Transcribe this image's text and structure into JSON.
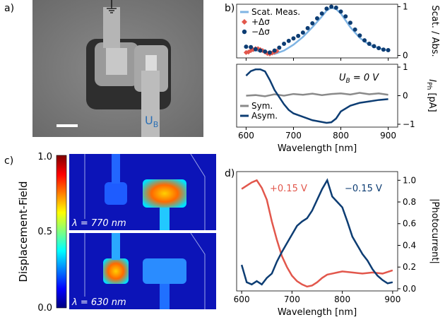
{
  "panels": {
    "a": {
      "label": "a)",
      "gate_label": "U",
      "gate_sub": "B"
    },
    "b": {
      "label": "b)"
    },
    "c": {
      "label": "c)",
      "colorbar": {
        "title": "Displacement-Field",
        "ticks": [
          "1.0",
          "0.5",
          "0.0"
        ]
      },
      "top_image_label": "λ = 770 nm",
      "bottom_image_label": "λ = 630 nm"
    },
    "d": {
      "label": "d)"
    }
  },
  "colors": {
    "meas": "#7fb4e3",
    "plus": "#e2574c",
    "minus": "#0d3d73",
    "sym": "#8a8a8a",
    "asym": "#0d3d73"
  },
  "chart_data": [
    {
      "type": "scatter",
      "panel": "b-top",
      "ylabel": "Scat. / Abs.",
      "xlim": [
        580,
        920
      ],
      "ylim": [
        -0.05,
        1.05
      ],
      "yticks": [
        "0",
        "1"
      ],
      "legend": [
        "Scat. Meas.",
        "+Δσ",
        "−Δσ"
      ],
      "series": [
        {
          "name": "Scat. Meas.",
          "x": [
            600,
            620,
            640,
            660,
            680,
            700,
            720,
            740,
            760,
            770,
            780,
            790,
            800,
            820,
            840,
            860,
            880,
            900
          ],
          "y": [
            0.08,
            0.1,
            0.08,
            0.03,
            0.1,
            0.22,
            0.38,
            0.58,
            0.8,
            0.92,
            0.98,
            0.95,
            0.86,
            0.58,
            0.36,
            0.22,
            0.15,
            0.1
          ]
        },
        {
          "name": "+Δσ",
          "x": [
            600,
            605,
            610,
            615,
            620,
            625,
            630,
            635,
            640,
            645,
            650,
            655,
            660,
            665
          ],
          "y": [
            0.06,
            0.07,
            0.1,
            0.12,
            0.14,
            0.14,
            0.12,
            0.1,
            0.07,
            0.04,
            0.03,
            0.05,
            0.07,
            0.09
          ]
        },
        {
          "name": "−Δσ",
          "x": [
            600,
            610,
            620,
            630,
            640,
            650,
            660,
            670,
            680,
            690,
            700,
            710,
            720,
            730,
            740,
            750,
            760,
            770,
            780,
            790,
            800,
            810,
            820,
            830,
            840,
            850,
            860,
            870,
            880,
            890,
            900
          ],
          "y": [
            0.18,
            0.17,
            0.13,
            0.1,
            0.08,
            0.06,
            0.1,
            0.16,
            0.24,
            0.3,
            0.35,
            0.4,
            0.47,
            0.56,
            0.66,
            0.76,
            0.86,
            0.96,
            1.0,
            0.98,
            0.9,
            0.8,
            0.67,
            0.53,
            0.41,
            0.31,
            0.24,
            0.19,
            0.15,
            0.12,
            0.11
          ]
        }
      ]
    },
    {
      "type": "line",
      "panel": "b-bottom",
      "annotation": "U_B = 0 V",
      "ylabel": "I_Ph [pA]",
      "xlabel": "Wavelength [nm]",
      "xlim": [
        580,
        920
      ],
      "ylim": [
        -1.1,
        1.1
      ],
      "xticks": [
        "600",
        "700",
        "800",
        "900"
      ],
      "yticks": [
        "−1",
        "0",
        "1"
      ],
      "legend": [
        "Sym.",
        "Asym."
      ],
      "series": [
        {
          "name": "Sym.",
          "x": [
            600,
            620,
            640,
            660,
            680,
            700,
            720,
            740,
            760,
            780,
            800,
            820,
            840,
            860,
            880,
            900
          ],
          "y": [
            0.0,
            0.02,
            -0.02,
            0.05,
            0.0,
            0.06,
            0.03,
            0.07,
            0.02,
            0.06,
            0.08,
            0.04,
            0.1,
            0.05,
            0.08,
            0.03
          ]
        },
        {
          "name": "Asym.",
          "x": [
            600,
            610,
            620,
            630,
            640,
            650,
            660,
            670,
            680,
            690,
            700,
            720,
            740,
            760,
            770,
            780,
            790,
            800,
            820,
            840,
            860,
            880,
            900
          ],
          "y": [
            0.7,
            0.86,
            0.92,
            0.92,
            0.85,
            0.55,
            0.2,
            -0.05,
            -0.3,
            -0.5,
            -0.62,
            -0.74,
            -0.86,
            -0.92,
            -0.95,
            -0.93,
            -0.8,
            -0.55,
            -0.35,
            -0.25,
            -0.2,
            -0.15,
            -0.12
          ]
        }
      ]
    },
    {
      "type": "line",
      "panel": "d",
      "xlabel": "Wavelength [nm]",
      "ylabel": "|Photocurrent|",
      "xlim": [
        590,
        910
      ],
      "ylim": [
        -0.02,
        1.08
      ],
      "xticks": [
        "600",
        "700",
        "800",
        "900"
      ],
      "yticks": [
        "0.0",
        "0.2",
        "0.4",
        "0.6",
        "0.8",
        "1.0"
      ],
      "annotations": [
        "+0.15 V",
        "−0.15 V"
      ],
      "series": [
        {
          "name": "+0.15 V",
          "x": [
            600,
            610,
            620,
            630,
            640,
            650,
            660,
            670,
            680,
            690,
            700,
            710,
            720,
            730,
            740,
            750,
            760,
            770,
            780,
            790,
            800,
            820,
            840,
            860,
            880,
            900
          ],
          "y": [
            0.92,
            0.95,
            0.98,
            1.0,
            0.93,
            0.82,
            0.62,
            0.45,
            0.3,
            0.2,
            0.12,
            0.07,
            0.04,
            0.02,
            0.03,
            0.06,
            0.1,
            0.13,
            0.14,
            0.15,
            0.16,
            0.15,
            0.14,
            0.15,
            0.14,
            0.17
          ]
        },
        {
          "name": "−0.15 V",
          "x": [
            600,
            610,
            620,
            630,
            640,
            650,
            660,
            670,
            680,
            690,
            700,
            710,
            720,
            730,
            740,
            750,
            760,
            770,
            780,
            790,
            800,
            810,
            820,
            830,
            840,
            850,
            860,
            870,
            880,
            890,
            900
          ],
          "y": [
            0.22,
            0.06,
            0.04,
            0.07,
            0.04,
            0.1,
            0.14,
            0.25,
            0.34,
            0.42,
            0.5,
            0.58,
            0.62,
            0.65,
            0.72,
            0.82,
            0.92,
            1.0,
            0.85,
            0.8,
            0.75,
            0.62,
            0.48,
            0.4,
            0.32,
            0.26,
            0.18,
            0.12,
            0.08,
            0.05,
            0.06
          ]
        }
      ]
    }
  ]
}
